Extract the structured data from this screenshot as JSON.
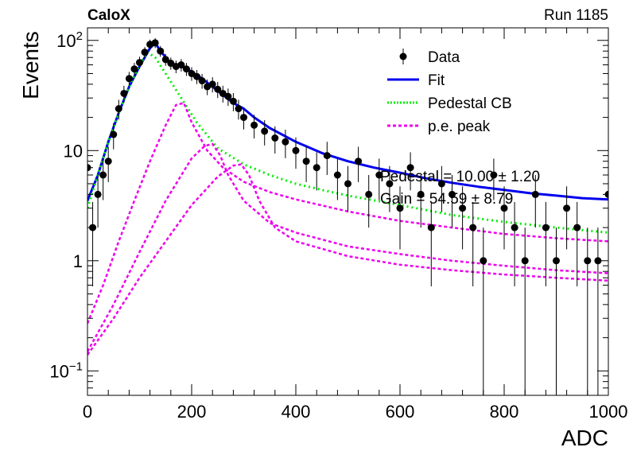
{
  "header": {
    "experiment": "CaloX",
    "run": "Run 1185"
  },
  "chart_data": {
    "type": "scatter",
    "title": "",
    "xlabel": "ADC",
    "ylabel": "Events",
    "xlim": [
      0,
      1000
    ],
    "ylim": [
      0.06,
      130
    ],
    "yscale": "log",
    "grid": false,
    "legend_position": "top-right",
    "x_ticks": [
      "0",
      "200",
      "400",
      "600",
      "800",
      "1000"
    ],
    "y_ticks": [
      {
        "value": 0.1,
        "base": "10",
        "exp": "−1"
      },
      {
        "value": 1,
        "label": "1"
      },
      {
        "value": 10,
        "label": "10"
      },
      {
        "value": 100,
        "base": "10",
        "exp": "2"
      }
    ],
    "legend": [
      {
        "label": "Data",
        "style": "marker"
      },
      {
        "label": "Fit",
        "style": "solid"
      },
      {
        "label": "Pedestal CB",
        "style": "dotted"
      },
      {
        "label": "p.e. peak",
        "style": "dashed"
      }
    ],
    "fit_params": [
      "Pedestal = 10.00 ± 1.20",
      "Gain = 54.59 ± 8.79"
    ],
    "colors": {
      "data": "#000000",
      "fit": "#0000ee",
      "pedestal": "#00ee00",
      "pe": "#ee00ee"
    },
    "series": [
      {
        "name": "Data",
        "style": "markers-with-errors",
        "x": [
          0,
          10,
          20,
          30,
          40,
          50,
          60,
          70,
          80,
          90,
          100,
          110,
          120,
          130,
          140,
          150,
          160,
          170,
          180,
          190,
          200,
          210,
          220,
          230,
          240,
          250,
          260,
          270,
          280,
          290,
          300,
          320,
          340,
          360,
          380,
          400,
          420,
          440,
          460,
          480,
          500,
          520,
          540,
          560,
          580,
          600,
          620,
          640,
          660,
          680,
          700,
          720,
          740,
          760,
          780,
          800,
          820,
          840,
          860,
          880,
          900,
          920,
          940,
          960,
          980,
          1000
        ],
        "y": [
          7,
          2,
          4,
          6,
          8,
          14,
          24,
          33,
          45,
          55,
          63,
          78,
          92,
          95,
          80,
          67,
          62,
          58,
          60,
          55,
          50,
          47,
          43,
          38,
          40,
          36,
          33,
          31,
          28,
          24,
          20,
          17,
          15,
          13,
          12,
          10,
          8,
          7,
          9,
          6,
          5,
          8,
          4,
          6,
          5,
          3,
          7,
          4,
          2,
          5,
          4,
          3,
          2,
          1,
          6,
          3,
          2,
          1,
          4,
          2,
          1,
          3,
          2,
          1,
          1,
          4
        ]
      },
      {
        "name": "Fit",
        "style": "solid",
        "x": [
          0,
          20,
          40,
          60,
          80,
          100,
          120,
          130,
          140,
          160,
          180,
          200,
          220,
          240,
          260,
          280,
          300,
          320,
          350,
          400,
          450,
          500,
          550,
          600,
          650,
          700,
          750,
          800,
          850,
          900,
          950,
          1000
        ],
        "y": [
          3.5,
          6,
          12,
          22,
          38,
          58,
          85,
          95,
          80,
          62,
          58,
          52,
          45,
          38,
          32,
          27,
          24,
          20,
          16,
          12,
          9.5,
          8,
          7,
          6.3,
          5.6,
          5.1,
          4.7,
          4.4,
          4.1,
          3.9,
          3.7,
          3.6
        ]
      },
      {
        "name": "Pedestal CB",
        "style": "dotted",
        "x": [
          0,
          20,
          40,
          60,
          80,
          100,
          115,
          130,
          150,
          180,
          210,
          250,
          300,
          350,
          400,
          450,
          500,
          600,
          700,
          800,
          900,
          1000
        ],
        "y": [
          3,
          6,
          12,
          22,
          38,
          60,
          78,
          70,
          50,
          30,
          18,
          10.5,
          7.5,
          6,
          5,
          4.4,
          3.9,
          3.2,
          2.6,
          2.25,
          2.0,
          1.8
        ]
      },
      {
        "name": "p.e. peak 1",
        "style": "dashed",
        "x": [
          0,
          30,
          60,
          90,
          120,
          150,
          170,
          185,
          200,
          230,
          260,
          300,
          350,
          400,
          500,
          600,
          700,
          800,
          900,
          1000
        ],
        "y": [
          0.27,
          0.6,
          1.5,
          3.5,
          8,
          17,
          26,
          27,
          18,
          10,
          7,
          5.2,
          4.2,
          3.6,
          2.8,
          2.3,
          2.0,
          1.75,
          1.6,
          1.5
        ]
      },
      {
        "name": "p.e. peak 2",
        "style": "dashed",
        "x": [
          0,
          50,
          100,
          150,
          200,
          225,
          240,
          255,
          270,
          300,
          350,
          400,
          500,
          600,
          700,
          800,
          900,
          1000
        ],
        "y": [
          0.15,
          0.4,
          1.2,
          3.5,
          8.5,
          11,
          11.5,
          9,
          6,
          3.5,
          2.2,
          1.8,
          1.35,
          1.15,
          1.0,
          0.9,
          0.82,
          0.77
        ]
      },
      {
        "name": "p.e. peak 3",
        "style": "dashed",
        "x": [
          0,
          50,
          100,
          150,
          200,
          250,
          280,
          295,
          310,
          330,
          360,
          400,
          500,
          600,
          700,
          800,
          900,
          1000
        ],
        "y": [
          0.14,
          0.3,
          0.7,
          1.5,
          3.2,
          5.8,
          7.3,
          7.5,
          6,
          3.5,
          2,
          1.5,
          1.1,
          0.92,
          0.82,
          0.75,
          0.7,
          0.66
        ]
      }
    ]
  }
}
